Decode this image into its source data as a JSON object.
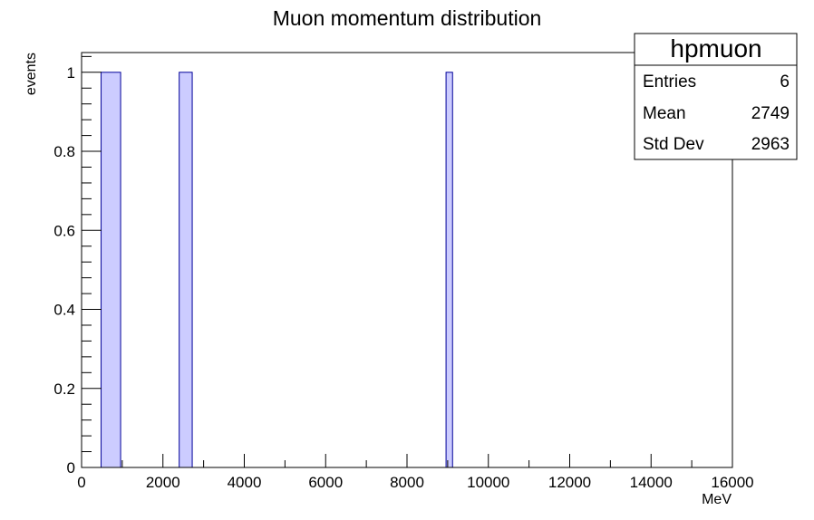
{
  "chart_data": {
    "type": "bar",
    "title": "Muon momentum distribution",
    "xlabel": "MeV",
    "ylabel": "events",
    "xlim": [
      0,
      16000
    ],
    "ylim": [
      0,
      1.05
    ],
    "x_ticks": [
      "0",
      "2000",
      "4000",
      "6000",
      "8000",
      "10000",
      "12000",
      "14000",
      "16000"
    ],
    "y_ticks": [
      "0",
      "0.2",
      "0.4",
      "0.6",
      "0.8",
      "1"
    ],
    "bars": [
      {
        "x0": 480,
        "x1": 960,
        "value": 1
      },
      {
        "x0": 2400,
        "x1": 2720,
        "value": 1
      },
      {
        "x0": 8960,
        "x1": 9120,
        "value": 1
      }
    ],
    "fill_color": "#ccccff",
    "line_color": "#000099",
    "stats_box": {
      "name": "hpmuon",
      "entries_label": "Entries",
      "entries": "6",
      "mean_label": "Mean",
      "mean": "2749",
      "std_label": "Std Dev",
      "std": "2963"
    }
  }
}
